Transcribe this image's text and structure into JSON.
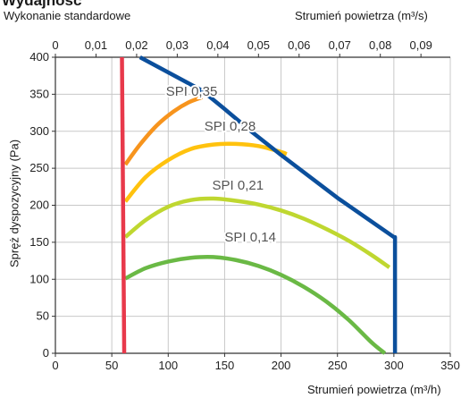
{
  "header": {
    "title": "Wydajność",
    "subtitle": "Wykonanie standardowe"
  },
  "chart_data": {
    "type": "line",
    "title": "Wydajność",
    "subtitle": "Wykonanie standardowe",
    "xlabel": "Strumień powietrza (m³/h)",
    "x2label": "Strumień powietrza (m³/s)",
    "ylabel": "Spręż dyspozycyjny (Pa)",
    "xlim": [
      0,
      350
    ],
    "x2lim": [
      0,
      0.097222
    ],
    "ylim": [
      0,
      400
    ],
    "x_ticks": [
      "0",
      "50",
      "100",
      "150",
      "200",
      "250",
      "300",
      "350"
    ],
    "x2_ticks": [
      "0",
      "0,01",
      "0,02",
      "0,03",
      "0,04",
      "0,05",
      "0,06",
      "0,07",
      "0,08",
      "0,09"
    ],
    "y_ticks": [
      "0",
      "50",
      "100",
      "150",
      "200",
      "250",
      "300",
      "350",
      "400"
    ],
    "grid": true,
    "series": [
      {
        "name": "SPI 0,14",
        "color": "#6ab945",
        "label_x": 150,
        "label_y": 151,
        "points": [
          [
            62,
            101
          ],
          [
            80,
            115
          ],
          [
            100,
            124
          ],
          [
            120,
            129
          ],
          [
            140,
            130
          ],
          [
            160,
            126
          ],
          [
            180,
            118
          ],
          [
            200,
            106
          ],
          [
            220,
            90
          ],
          [
            240,
            70
          ],
          [
            260,
            45
          ],
          [
            280,
            15
          ],
          [
            292,
            0
          ]
        ]
      },
      {
        "name": "SPI 0,21",
        "color": "#bfd730",
        "label_x": 139,
        "label_y": 221,
        "points": [
          [
            62,
            157
          ],
          [
            80,
            180
          ],
          [
            100,
            198
          ],
          [
            120,
            207
          ],
          [
            140,
            209
          ],
          [
            160,
            206
          ],
          [
            180,
            201
          ],
          [
            200,
            193
          ],
          [
            220,
            182
          ],
          [
            240,
            168
          ],
          [
            260,
            152
          ],
          [
            280,
            133
          ],
          [
            296,
            116
          ]
        ]
      },
      {
        "name": "SPI 0,28",
        "color": "#ffc20e",
        "label_x": 132,
        "label_y": 301,
        "points": [
          [
            62,
            205
          ],
          [
            80,
            238
          ],
          [
            100,
            261
          ],
          [
            120,
            276
          ],
          [
            140,
            282
          ],
          [
            160,
            283
          ],
          [
            180,
            280
          ],
          [
            200,
            272
          ],
          [
            205,
            269
          ]
        ]
      },
      {
        "name": "SPI 0,35",
        "color": "#f7941d",
        "label_x": 98,
        "label_y": 348,
        "points": [
          [
            62,
            255
          ],
          [
            75,
            282
          ],
          [
            90,
            308
          ],
          [
            105,
            327
          ],
          [
            118,
            339
          ],
          [
            130,
            346
          ]
        ]
      },
      {
        "name": "",
        "color": "#0b4f9c",
        "points": [
          [
            75,
            400
          ],
          [
            130,
            355
          ],
          [
            150,
            330
          ],
          [
            175,
            298
          ],
          [
            200,
            268
          ],
          [
            250,
            210
          ],
          [
            300,
            157
          ],
          [
            301,
            157
          ],
          [
            301,
            0
          ]
        ]
      },
      {
        "name": "",
        "color": "#e8394b",
        "points": [
          [
            59,
            400
          ],
          [
            61,
            0
          ]
        ]
      }
    ]
  }
}
